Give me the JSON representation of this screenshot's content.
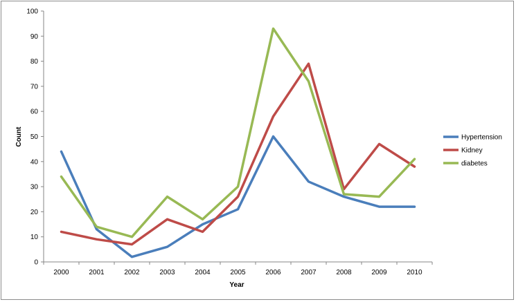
{
  "chart_data": {
    "type": "line",
    "title": "",
    "xlabel": "Year",
    "ylabel": "Count",
    "ylim": [
      0,
      100
    ],
    "yticks": [
      "0",
      "10",
      "20",
      "30",
      "40",
      "50",
      "60",
      "70",
      "80",
      "90",
      "100"
    ],
    "categories": [
      "2000",
      "2001",
      "2002",
      "2003",
      "2004",
      "2005",
      "2006",
      "2007",
      "2008",
      "2009",
      "2010"
    ],
    "grid": false,
    "legend_position": "right",
    "series": [
      {
        "name": "Hypertension",
        "color": "#4a7ebb",
        "values": [
          44,
          13,
          2,
          6,
          15,
          21,
          50,
          32,
          26,
          22,
          22
        ]
      },
      {
        "name": "Kidney",
        "color": "#be4b48",
        "values": [
          12,
          9,
          7,
          17,
          12,
          26,
          58,
          79,
          29,
          47,
          38
        ]
      },
      {
        "name": "diabetes",
        "color": "#98b954",
        "values": [
          34,
          14,
          10,
          26,
          17,
          30,
          93,
          72,
          27,
          26,
          41
        ]
      }
    ]
  }
}
